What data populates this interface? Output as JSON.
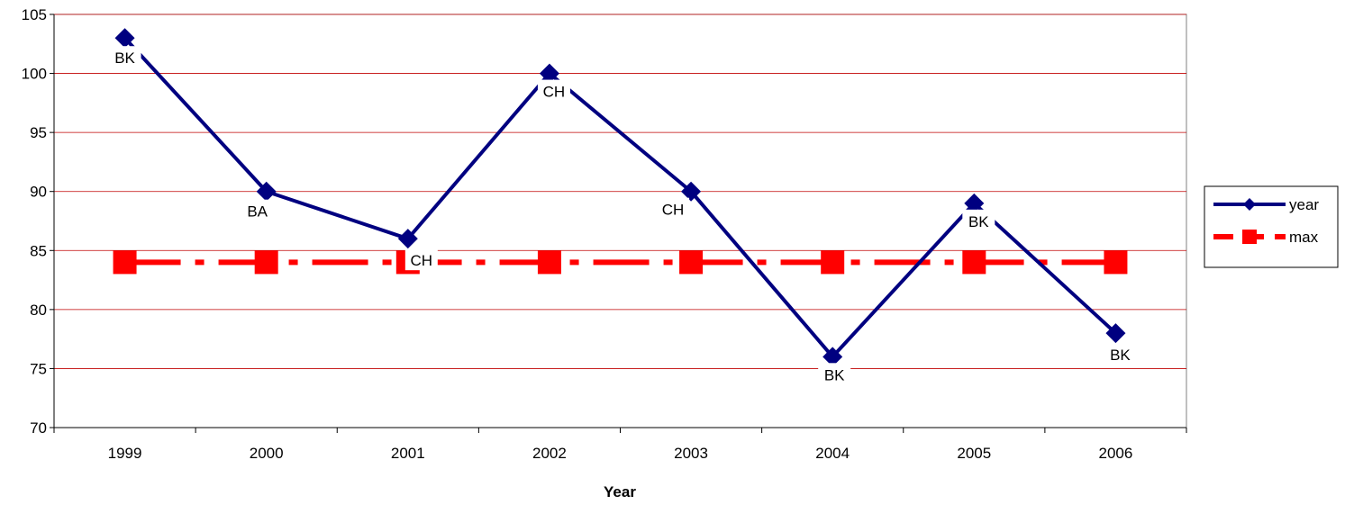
{
  "chart_data": {
    "type": "line",
    "title": "",
    "xlabel": "Year",
    "ylabel": "",
    "categories": [
      "1999",
      "2000",
      "2001",
      "2002",
      "2003",
      "2004",
      "2005",
      "2006"
    ],
    "ylim": [
      70,
      105
    ],
    "yticks": [
      "70",
      "75",
      "80",
      "85",
      "90",
      "95",
      "100",
      "105"
    ],
    "grid": true,
    "legend_position": "right",
    "series": [
      {
        "name": "year",
        "values": [
          103,
          90,
          86,
          100,
          90,
          76,
          89,
          78
        ],
        "point_labels": [
          "BK",
          "BA",
          "CH",
          "CH",
          "CH",
          "BK",
          "BK",
          "BK"
        ],
        "color": "#000080",
        "marker": "diamond",
        "style": "solid"
      },
      {
        "name": "max",
        "values": [
          84,
          84,
          84,
          84,
          84,
          84,
          84,
          84
        ],
        "color": "#ff0000",
        "marker": "square",
        "style": "dashed"
      }
    ],
    "grid_color": "#c00000"
  }
}
